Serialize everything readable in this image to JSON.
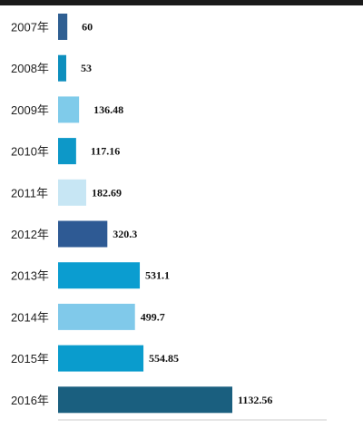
{
  "chart_data": {
    "type": "bar",
    "orientation": "horizontal",
    "categories": [
      "2007年",
      "2008年",
      "2009年",
      "2010年",
      "2011年",
      "2012年",
      "2013年",
      "2014年",
      "2015年",
      "2016年"
    ],
    "values": [
      60,
      53,
      136.48,
      117.16,
      182.69,
      320.3,
      531.1,
      499.7,
      554.85,
      1132.56
    ],
    "value_labels": [
      "60",
      "53",
      "136.48",
      "117.16",
      "182.69",
      "320.3",
      "531.1",
      "499.7",
      "554.85",
      "1132.56"
    ],
    "bar_colors": [
      "#2f5f92",
      "#0d8fbe",
      "#7fcbea",
      "#0d98c8",
      "#c7e6f4",
      "#2e5a94",
      "#0b9dd0",
      "#80c9ea",
      "#0a9ccd",
      "#1a5f7f"
    ],
    "title": "",
    "xlabel": "",
    "ylabel": "",
    "xlim": [
      0,
      1132.56
    ],
    "grid": false,
    "legend": "none"
  }
}
